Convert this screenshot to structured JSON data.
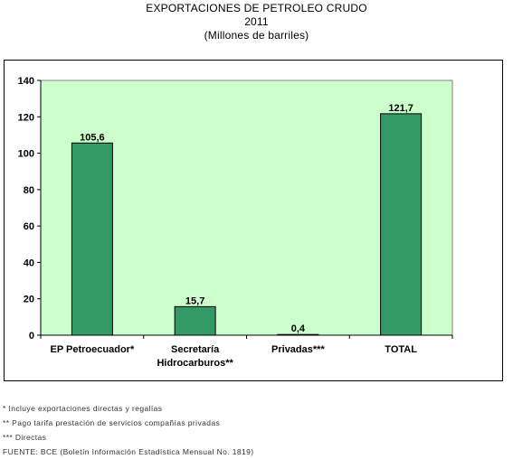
{
  "title": {
    "line1": "EXPORTACIONES DE PETROLEO CRUDO",
    "line2": "2011",
    "line3": "(Millones de barriles)"
  },
  "colors": {
    "plot_bg": "#ccffcc",
    "bar": "#339966",
    "bar_border": "#000000"
  },
  "chart_data": {
    "type": "bar",
    "categories": [
      [
        "EP Petroecuador*"
      ],
      [
        "Secretaría",
        "Hidrocarburos**"
      ],
      [
        "Privadas***"
      ],
      [
        "TOTAL"
      ]
    ],
    "values": [
      105.6,
      15.7,
      0.4,
      121.7
    ],
    "data_labels": [
      "105,6",
      "15,7",
      "0,4",
      "121,7"
    ],
    "ylim": [
      0,
      140
    ],
    "yticks": [
      0,
      20,
      40,
      60,
      80,
      100,
      120,
      140
    ],
    "grid": false,
    "legend": "none"
  },
  "notes": [
    "* Incluye exportaciones directas y regalías",
    "** Pago tarifa prestación de servicios compañías privadas",
    "*** Directas",
    "FUENTE: BCE (Boletín Información Estadística Mensual No. 1819)"
  ]
}
